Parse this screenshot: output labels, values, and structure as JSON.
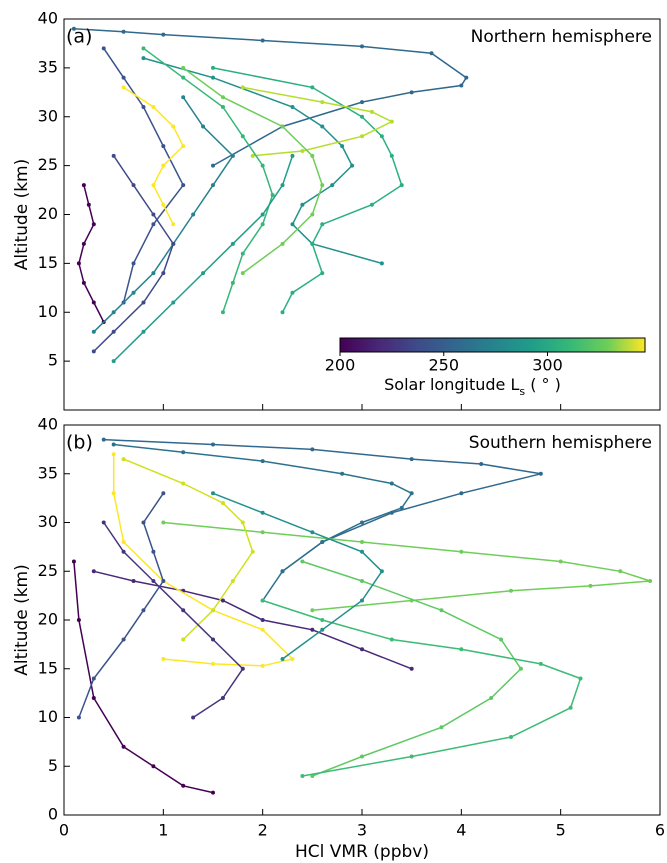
{
  "chart_data": [
    {
      "type": "line",
      "panel_label": "(a)",
      "annotation": "Northern hemisphere",
      "ylabel": "Altitude (km)",
      "xlim": [
        0,
        6
      ],
      "xticks": [
        0,
        1,
        2,
        3,
        4,
        5,
        6
      ],
      "ylim": [
        0,
        40
      ],
      "yticks": [
        5,
        10,
        15,
        20,
        25,
        30,
        35,
        40
      ],
      "colorbar": {
        "label": [
          "Solar longitude L",
          "s",
          " ( ° )"
        ],
        "lim": [
          200,
          347
        ],
        "ticks": [
          200,
          250,
          300
        ]
      },
      "series": [
        {
          "color": "#31688e",
          "x": [
            0.1,
            0.6,
            1.0,
            2.0,
            3.0,
            3.7,
            4.05,
            4.0,
            3.5,
            3.0,
            2.2,
            1.5
          ],
          "values": [
            39,
            38.7,
            38.4,
            37.8,
            37.2,
            36.5,
            34,
            33.2,
            32.5,
            31.5,
            29,
            25
          ]
        },
        {
          "color": "#440154",
          "x": [
            0.2,
            0.25,
            0.3,
            0.2,
            0.15,
            0.2,
            0.3,
            0.4
          ],
          "values": [
            23,
            21,
            19,
            17,
            15,
            13,
            11,
            9
          ]
        },
        {
          "color": "#3b528b",
          "x": [
            0.4,
            0.6,
            0.8,
            1.0,
            1.2,
            0.9,
            0.7,
            0.6
          ],
          "values": [
            37,
            34,
            31,
            27,
            23,
            19,
            15,
            11
          ]
        },
        {
          "color": "#21918c",
          "x": [
            0.8,
            1.5,
            2.3,
            2.6,
            2.8,
            2.9,
            2.7,
            2.4,
            2.3,
            2.5,
            3.2
          ],
          "values": [
            36,
            34,
            31,
            29,
            27,
            25,
            23,
            21,
            19,
            17,
            15
          ]
        },
        {
          "color": "#2ab07f",
          "x": [
            1.5,
            2.5,
            3.0,
            3.2,
            3.3,
            3.4,
            3.1,
            2.6,
            2.5,
            2.6,
            2.3,
            2.2
          ],
          "values": [
            35,
            33,
            30,
            28,
            26,
            23,
            21,
            19,
            17,
            14,
            12,
            10
          ]
        },
        {
          "color": "#b5de2b",
          "x": [
            1.8,
            2.6,
            3.1,
            3.3,
            3.0,
            2.4,
            1.9
          ],
          "values": [
            33,
            31.5,
            30.5,
            29.5,
            28,
            26.5,
            26
          ]
        },
        {
          "color": "#fde725",
          "x": [
            0.6,
            0.9,
            1.1,
            1.2,
            1.0,
            0.9,
            1.0,
            1.1
          ],
          "values": [
            33,
            31,
            29,
            27,
            25,
            23,
            21,
            19
          ]
        },
        {
          "color": "#26828e",
          "x": [
            0.3,
            0.5,
            0.7,
            0.9,
            1.1,
            1.3,
            1.5,
            1.7,
            1.4,
            1.2
          ],
          "values": [
            8,
            10,
            12,
            14,
            17,
            20,
            23,
            26,
            29,
            32
          ]
        },
        {
          "color": "#35b779",
          "x": [
            0.8,
            1.2,
            1.6,
            1.8,
            2.0,
            2.1,
            2.0,
            1.8,
            1.7,
            1.6
          ],
          "values": [
            37,
            34,
            31,
            28,
            25,
            22,
            19,
            16,
            13,
            10
          ]
        },
        {
          "color": "#6ece58",
          "x": [
            1.2,
            1.6,
            2.2,
            2.5,
            2.6,
            2.5,
            2.2,
            1.8
          ],
          "values": [
            35,
            32,
            29,
            26,
            23,
            20,
            17,
            14
          ]
        },
        {
          "color": "#3e4a89",
          "x": [
            0.3,
            0.5,
            0.8,
            1.0,
            1.1,
            0.9,
            0.7,
            0.5
          ],
          "values": [
            6,
            8,
            11,
            14,
            17,
            20,
            23,
            26
          ]
        },
        {
          "color": "#1f9e89",
          "x": [
            0.5,
            0.8,
            1.1,
            1.4,
            1.7,
            2.0,
            2.2,
            2.3
          ],
          "values": [
            5,
            8,
            11,
            14,
            17,
            20,
            23,
            26
          ]
        }
      ]
    },
    {
      "type": "line",
      "panel_label": "(b)",
      "annotation": "Southern hemisphere",
      "ylabel": "Altitude (km)",
      "xlabel": "HCl VMR (ppbv)",
      "xlim": [
        0,
        6
      ],
      "xticks": [
        0,
        1,
        2,
        3,
        4,
        5,
        6
      ],
      "ylim": [
        0,
        40
      ],
      "yticks": [
        0,
        5,
        10,
        15,
        20,
        25,
        30,
        35,
        40
      ],
      "series": [
        {
          "color": "#31688e",
          "x": [
            0.4,
            1.5,
            2.5,
            3.5,
            4.2,
            4.8,
            4.0,
            3.3,
            2.6,
            2.2
          ],
          "values": [
            38.5,
            38,
            37.5,
            36.5,
            36,
            35,
            33,
            31,
            28,
            25
          ]
        },
        {
          "color": "#2c728e",
          "x": [
            0.5,
            1.2,
            2.0,
            2.8,
            3.3,
            3.5,
            3.4,
            3.0,
            2.6,
            2.2,
            2.0
          ],
          "values": [
            38,
            37.2,
            36.3,
            35,
            34,
            33,
            31.5,
            30,
            28,
            25,
            22
          ]
        },
        {
          "color": "#6ece58",
          "x": [
            1.0,
            2.0,
            3.0,
            4.0,
            5.0,
            5.6,
            5.9,
            5.3,
            4.5,
            3.5,
            2.5
          ],
          "values": [
            30,
            29,
            28,
            27,
            26,
            25,
            24,
            23.5,
            23,
            22,
            21
          ]
        },
        {
          "color": "#5ec962",
          "x": [
            2.4,
            3.0,
            3.8,
            4.4,
            4.6,
            4.3,
            3.8,
            3.0,
            2.5
          ],
          "values": [
            26,
            24,
            21,
            18,
            15,
            12,
            9,
            6,
            4
          ]
        },
        {
          "color": "#3bbb75",
          "x": [
            2.0,
            2.6,
            3.3,
            4.0,
            4.8,
            5.2,
            5.1,
            4.5,
            3.5,
            2.4
          ],
          "values": [
            22,
            20,
            18,
            17,
            15.5,
            14,
            11,
            8,
            6,
            4
          ]
        },
        {
          "color": "#440154",
          "x": [
            0.1,
            0.15,
            0.3,
            0.6,
            0.9,
            1.2,
            1.5
          ],
          "values": [
            26,
            20,
            12,
            7,
            5,
            3,
            2.3
          ]
        },
        {
          "color": "#482878",
          "x": [
            0.3,
            0.7,
            1.2,
            1.6,
            2.0,
            2.5,
            3.0,
            3.5
          ],
          "values": [
            25,
            24,
            23,
            22,
            20,
            19,
            17,
            15
          ]
        },
        {
          "color": "#fde725",
          "x": [
            0.5,
            0.5,
            0.6,
            1.0,
            1.5,
            2.0,
            2.3,
            2.0,
            1.5,
            1.0
          ],
          "values": [
            37,
            33,
            28,
            24,
            21,
            19,
            16,
            15.3,
            15.5,
            16
          ]
        },
        {
          "color": "#d0e11c",
          "x": [
            0.6,
            1.2,
            1.6,
            1.8,
            1.9,
            1.7,
            1.5,
            1.2
          ],
          "values": [
            36.5,
            34,
            32,
            30,
            27,
            24,
            21,
            18
          ]
        },
        {
          "color": "#3b528b",
          "x": [
            0.15,
            0.3,
            0.6,
            0.8,
            1.0,
            0.9,
            0.8,
            1.0
          ],
          "values": [
            10,
            14,
            18,
            21,
            24,
            27,
            30,
            33
          ]
        },
        {
          "color": "#21918c",
          "x": [
            1.5,
            2.0,
            2.5,
            3.0,
            3.2,
            3.0,
            2.6,
            2.2
          ],
          "values": [
            33,
            31,
            29,
            27,
            25,
            22,
            19,
            16
          ]
        },
        {
          "color": "#46337e",
          "x": [
            0.4,
            0.6,
            0.9,
            1.2,
            1.5,
            1.8,
            1.6,
            1.3
          ],
          "values": [
            30,
            27,
            24,
            21,
            18,
            15,
            12,
            10
          ]
        }
      ]
    }
  ]
}
